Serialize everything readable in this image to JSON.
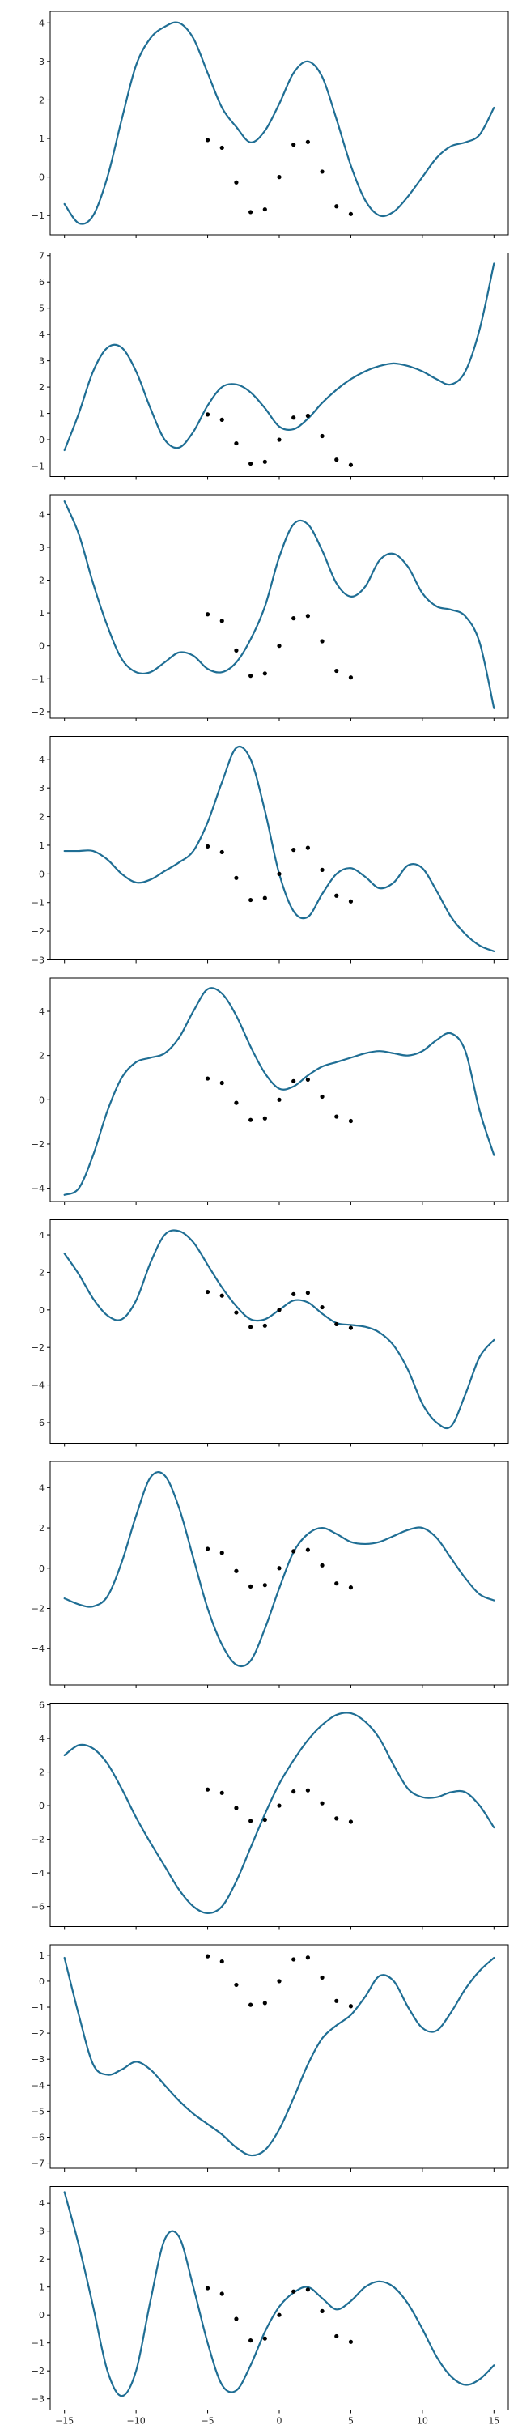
{
  "chart_data": [
    {
      "type": "line",
      "xlim": [
        -16,
        16
      ],
      "ylim": [
        -1.5,
        4.3
      ],
      "yticks": [
        -1,
        0,
        1,
        2,
        3,
        4
      ],
      "xticks": [
        -15,
        -10,
        -5,
        0,
        5,
        10,
        15
      ],
      "show_xtick_labels": false,
      "grid": false,
      "series_color": "#1f6e94",
      "curve": {
        "x": [
          -15,
          -14,
          -13,
          -12,
          -11,
          -10,
          -9,
          -8,
          -7,
          -6,
          -5,
          -4,
          -3,
          -2,
          -1,
          0,
          1,
          2,
          3,
          4,
          5,
          6,
          7,
          8,
          9,
          10,
          11,
          12,
          13,
          14,
          15
        ],
        "y": [
          -0.7,
          -1.2,
          -1.0,
          0.0,
          1.5,
          2.9,
          3.6,
          3.9,
          4.0,
          3.6,
          2.7,
          1.8,
          1.3,
          0.9,
          1.2,
          1.9,
          2.7,
          3.0,
          2.6,
          1.5,
          0.3,
          -0.6,
          -1.0,
          -0.9,
          -0.5,
          0.0,
          0.5,
          0.8,
          0.9,
          1.1,
          1.8
        ]
      },
      "points": {
        "x": [
          -5,
          -4,
          -3,
          -2,
          -1,
          0,
          1,
          2,
          3,
          4,
          5
        ],
        "y": [
          0.96,
          0.76,
          -0.14,
          -0.91,
          -0.84,
          0.0,
          0.84,
          0.91,
          0.14,
          -0.76,
          -0.96
        ]
      }
    },
    {
      "type": "line",
      "xlim": [
        -16,
        16
      ],
      "ylim": [
        -1.4,
        7.1
      ],
      "yticks": [
        -1,
        0,
        1,
        2,
        3,
        4,
        5,
        6,
        7
      ],
      "xticks": [
        -15,
        -10,
        -5,
        0,
        5,
        10,
        15
      ],
      "show_xtick_labels": false,
      "grid": false,
      "series_color": "#1f6e94",
      "curve": {
        "x": [
          -15,
          -14,
          -13,
          -12,
          -11,
          -10,
          -9,
          -8,
          -7,
          -6,
          -5,
          -4,
          -3,
          -2,
          -1,
          0,
          1,
          2,
          3,
          4,
          5,
          6,
          7,
          8,
          9,
          10,
          11,
          12,
          13,
          14,
          15
        ],
        "y": [
          -0.4,
          1.0,
          2.6,
          3.5,
          3.5,
          2.6,
          1.2,
          0.0,
          -0.3,
          0.3,
          1.3,
          2.0,
          2.1,
          1.8,
          1.2,
          0.5,
          0.4,
          0.8,
          1.4,
          1.9,
          2.3,
          2.6,
          2.8,
          2.9,
          2.8,
          2.6,
          2.3,
          2.1,
          2.6,
          4.2,
          6.7
        ]
      },
      "points": {
        "x": [
          -5,
          -4,
          -3,
          -2,
          -1,
          0,
          1,
          2,
          3,
          4,
          5
        ],
        "y": [
          0.96,
          0.76,
          -0.14,
          -0.91,
          -0.84,
          0.0,
          0.84,
          0.91,
          0.14,
          -0.76,
          -0.96
        ]
      }
    },
    {
      "type": "line",
      "xlim": [
        -16,
        16
      ],
      "ylim": [
        -2.2,
        4.6
      ],
      "yticks": [
        -2,
        -1,
        0,
        1,
        2,
        3,
        4
      ],
      "xticks": [
        -15,
        -10,
        -5,
        0,
        5,
        10,
        15
      ],
      "show_xtick_labels": false,
      "grid": false,
      "series_color": "#1f6e94",
      "curve": {
        "x": [
          -15,
          -14,
          -13,
          -12,
          -11,
          -10,
          -9,
          -8,
          -7,
          -6,
          -5,
          -4,
          -3,
          -2,
          -1,
          0,
          1,
          2,
          3,
          4,
          5,
          6,
          7,
          8,
          9,
          10,
          11,
          12,
          13,
          14,
          15
        ],
        "y": [
          4.4,
          3.4,
          1.9,
          0.6,
          -0.4,
          -0.8,
          -0.8,
          -0.5,
          -0.2,
          -0.3,
          -0.7,
          -0.8,
          -0.5,
          0.2,
          1.2,
          2.7,
          3.7,
          3.7,
          2.9,
          1.9,
          1.5,
          1.8,
          2.6,
          2.8,
          2.4,
          1.6,
          1.2,
          1.1,
          0.9,
          0.1,
          -1.9
        ]
      },
      "points": {
        "x": [
          -5,
          -4,
          -3,
          -2,
          -1,
          0,
          1,
          2,
          3,
          4,
          5
        ],
        "y": [
          0.96,
          0.76,
          -0.14,
          -0.91,
          -0.84,
          0.0,
          0.84,
          0.91,
          0.14,
          -0.76,
          -0.96
        ]
      }
    },
    {
      "type": "line",
      "xlim": [
        -16,
        16
      ],
      "ylim": [
        -3.0,
        4.8
      ],
      "yticks": [
        -3,
        -2,
        -1,
        0,
        1,
        2,
        3,
        4
      ],
      "xticks": [
        -15,
        -10,
        -5,
        0,
        5,
        10,
        15
      ],
      "show_xtick_labels": false,
      "grid": false,
      "series_color": "#1f6e94",
      "curve": {
        "x": [
          -15,
          -14,
          -13,
          -12,
          -11,
          -10,
          -9,
          -8,
          -7,
          -6,
          -5,
          -4,
          -3,
          -2,
          -1,
          0,
          1,
          2,
          3,
          4,
          5,
          6,
          7,
          8,
          9,
          10,
          11,
          12,
          13,
          14,
          15
        ],
        "y": [
          0.8,
          0.8,
          0.8,
          0.5,
          0.0,
          -0.3,
          -0.2,
          0.1,
          0.4,
          0.8,
          1.8,
          3.2,
          4.4,
          4.0,
          2.2,
          0.0,
          -1.3,
          -1.5,
          -0.7,
          0.0,
          0.2,
          -0.1,
          -0.5,
          -0.3,
          0.3,
          0.2,
          -0.6,
          -1.5,
          -2.1,
          -2.5,
          -2.7
        ]
      },
      "points": {
        "x": [
          -5,
          -4,
          -3,
          -2,
          -1,
          0,
          1,
          2,
          3,
          4,
          5
        ],
        "y": [
          0.96,
          0.76,
          -0.14,
          -0.91,
          -0.84,
          0.0,
          0.84,
          0.91,
          0.14,
          -0.76,
          -0.96
        ]
      }
    },
    {
      "type": "line",
      "xlim": [
        -16,
        16
      ],
      "ylim": [
        -4.6,
        5.5
      ],
      "yticks": [
        -4,
        -2,
        0,
        2,
        4
      ],
      "xticks": [
        -15,
        -10,
        -5,
        0,
        5,
        10,
        15
      ],
      "show_xtick_labels": false,
      "grid": false,
      "series_color": "#1f6e94",
      "curve": {
        "x": [
          -15,
          -14,
          -13,
          -12,
          -11,
          -10,
          -9,
          -8,
          -7,
          -6,
          -5,
          -4,
          -3,
          -2,
          -1,
          0,
          1,
          2,
          3,
          4,
          5,
          6,
          7,
          8,
          9,
          10,
          11,
          12,
          13,
          14,
          15
        ],
        "y": [
          -4.3,
          -4.0,
          -2.5,
          -0.5,
          1.0,
          1.7,
          1.9,
          2.1,
          2.8,
          4.0,
          5.0,
          4.8,
          3.8,
          2.4,
          1.2,
          0.5,
          0.6,
          1.1,
          1.5,
          1.7,
          1.9,
          2.1,
          2.2,
          2.1,
          2.0,
          2.2,
          2.7,
          3.0,
          2.2,
          -0.5,
          -2.5
        ]
      },
      "points": {
        "x": [
          -5,
          -4,
          -3,
          -2,
          -1,
          0,
          1,
          2,
          3,
          4,
          5
        ],
        "y": [
          0.96,
          0.76,
          -0.14,
          -0.91,
          -0.84,
          0.0,
          0.84,
          0.91,
          0.14,
          -0.76,
          -0.96
        ]
      }
    },
    {
      "type": "line",
      "xlim": [
        -16,
        16
      ],
      "ylim": [
        -7.1,
        4.8
      ],
      "yticks": [
        -6,
        -4,
        -2,
        0,
        2,
        4
      ],
      "xticks": [
        -15,
        -10,
        -5,
        0,
        5,
        10,
        15
      ],
      "show_xtick_labels": false,
      "grid": false,
      "series_color": "#1f6e94",
      "curve": {
        "x": [
          -15,
          -14,
          -13,
          -12,
          -11,
          -10,
          -9,
          -8,
          -7,
          -6,
          -5,
          -4,
          -3,
          -2,
          -1,
          0,
          1,
          2,
          3,
          4,
          5,
          6,
          7,
          8,
          9,
          10,
          11,
          12,
          13,
          14,
          15
        ],
        "y": [
          3.0,
          1.9,
          0.6,
          -0.3,
          -0.5,
          0.5,
          2.5,
          4.0,
          4.2,
          3.6,
          2.4,
          1.2,
          0.2,
          -0.5,
          -0.5,
          0.0,
          0.5,
          0.4,
          -0.2,
          -0.7,
          -0.8,
          -0.9,
          -1.2,
          -1.9,
          -3.2,
          -5.0,
          -6.0,
          -6.2,
          -4.5,
          -2.5,
          -1.6
        ]
      },
      "points": {
        "x": [
          -5,
          -4,
          -3,
          -2,
          -1,
          0,
          1,
          2,
          3,
          4,
          5
        ],
        "y": [
          0.96,
          0.76,
          -0.14,
          -0.91,
          -0.84,
          0.0,
          0.84,
          0.91,
          0.14,
          -0.76,
          -0.96
        ]
      }
    },
    {
      "type": "line",
      "xlim": [
        -16,
        16
      ],
      "ylim": [
        -5.8,
        5.3
      ],
      "yticks": [
        -4,
        -2,
        0,
        2,
        4
      ],
      "xticks": [
        -15,
        -10,
        -5,
        0,
        5,
        10,
        15
      ],
      "show_xtick_labels": false,
      "grid": false,
      "series_color": "#1f6e94",
      "curve": {
        "x": [
          -15,
          -14,
          -13,
          -12,
          -11,
          -10,
          -9,
          -8,
          -7,
          -6,
          -5,
          -4,
          -3,
          -2,
          -1,
          0,
          1,
          2,
          3,
          4,
          5,
          6,
          7,
          8,
          9,
          10,
          11,
          12,
          13,
          14,
          15
        ],
        "y": [
          -1.5,
          -1.8,
          -1.9,
          -1.4,
          0.3,
          2.6,
          4.5,
          4.6,
          3.0,
          0.5,
          -2.0,
          -3.8,
          -4.8,
          -4.6,
          -3.0,
          -1.0,
          0.8,
          1.7,
          2.0,
          1.7,
          1.3,
          1.2,
          1.3,
          1.6,
          1.9,
          2.0,
          1.5,
          0.5,
          -0.5,
          -1.3,
          -1.6
        ]
      },
      "points": {
        "x": [
          -5,
          -4,
          -3,
          -2,
          -1,
          0,
          1,
          2,
          3,
          4,
          5
        ],
        "y": [
          0.96,
          0.76,
          -0.14,
          -0.91,
          -0.84,
          0.0,
          0.84,
          0.91,
          0.14,
          -0.76,
          -0.96
        ]
      }
    },
    {
      "type": "line",
      "xlim": [
        -16,
        16
      ],
      "ylim": [
        -7.2,
        6.1
      ],
      "yticks": [
        -6,
        -4,
        -2,
        0,
        2,
        4,
        6
      ],
      "xticks": [
        -15,
        -10,
        -5,
        0,
        5,
        10,
        15
      ],
      "show_xtick_labels": false,
      "grid": false,
      "series_color": "#1f6e94",
      "curve": {
        "x": [
          -15,
          -14,
          -13,
          -12,
          -11,
          -10,
          -9,
          -8,
          -7,
          -6,
          -5,
          -4,
          -3,
          -2,
          -1,
          0,
          1,
          2,
          3,
          4,
          5,
          6,
          7,
          8,
          9,
          10,
          11,
          12,
          13,
          14,
          15
        ],
        "y": [
          3.0,
          3.6,
          3.4,
          2.5,
          1.0,
          -0.7,
          -2.2,
          -3.6,
          -5.0,
          -6.0,
          -6.4,
          -6.0,
          -4.5,
          -2.5,
          -0.5,
          1.3,
          2.7,
          3.9,
          4.8,
          5.4,
          5.5,
          5.0,
          4.0,
          2.4,
          1.0,
          0.5,
          0.5,
          0.8,
          0.8,
          0.0,
          -1.3
        ]
      },
      "points": {
        "x": [
          -5,
          -4,
          -3,
          -2,
          -1,
          0,
          1,
          2,
          3,
          4,
          5
        ],
        "y": [
          0.96,
          0.76,
          -0.14,
          -0.91,
          -0.84,
          0.0,
          0.84,
          0.91,
          0.14,
          -0.76,
          -0.96
        ]
      }
    },
    {
      "type": "line",
      "xlim": [
        -16,
        16
      ],
      "ylim": [
        -7.2,
        1.4
      ],
      "yticks": [
        -7,
        -6,
        -5,
        -4,
        -3,
        -2,
        -1,
        0,
        1
      ],
      "xticks": [
        -15,
        -10,
        -5,
        0,
        5,
        10,
        15
      ],
      "show_xtick_labels": false,
      "grid": false,
      "series_color": "#1f6e94",
      "curve": {
        "x": [
          -15,
          -14,
          -13,
          -12,
          -11,
          -10,
          -9,
          -8,
          -7,
          -6,
          -5,
          -4,
          -3,
          -2,
          -1,
          0,
          1,
          2,
          3,
          4,
          5,
          6,
          7,
          8,
          9,
          10,
          11,
          12,
          13,
          14,
          15
        ],
        "y": [
          0.9,
          -1.3,
          -3.2,
          -3.6,
          -3.4,
          -3.1,
          -3.4,
          -4.0,
          -4.6,
          -5.1,
          -5.5,
          -5.9,
          -6.4,
          -6.7,
          -6.5,
          -5.7,
          -4.5,
          -3.2,
          -2.2,
          -1.7,
          -1.3,
          -0.6,
          0.2,
          0.0,
          -1.0,
          -1.8,
          -1.9,
          -1.2,
          -0.3,
          0.4,
          0.9
        ]
      },
      "points": {
        "x": [
          -5,
          -4,
          -3,
          -2,
          -1,
          0,
          1,
          2,
          3,
          4,
          5
        ],
        "y": [
          0.96,
          0.76,
          -0.14,
          -0.91,
          -0.84,
          0.0,
          0.84,
          0.91,
          0.14,
          -0.76,
          -0.96
        ]
      }
    },
    {
      "type": "line",
      "xlim": [
        -16,
        16
      ],
      "ylim": [
        -3.4,
        4.6
      ],
      "yticks": [
        -3,
        -2,
        -1,
        0,
        1,
        2,
        3,
        4
      ],
      "xticks": [
        -15,
        -10,
        -5,
        0,
        5,
        10,
        15
      ],
      "xtick_labels": [
        "−15",
        "−10",
        "−5",
        "0",
        "5",
        "10",
        "15"
      ],
      "show_xtick_labels": true,
      "grid": false,
      "series_color": "#1f6e94",
      "curve": {
        "x": [
          -15,
          -14,
          -13,
          -12,
          -11,
          -10,
          -9,
          -8,
          -7,
          -6,
          -5,
          -4,
          -3,
          -2,
          -1,
          0,
          1,
          2,
          3,
          4,
          5,
          6,
          7,
          8,
          9,
          10,
          11,
          12,
          13,
          14,
          15
        ],
        "y": [
          4.4,
          2.5,
          0.3,
          -2.0,
          -2.9,
          -2.0,
          0.5,
          2.7,
          2.8,
          1.0,
          -1.0,
          -2.5,
          -2.7,
          -1.8,
          -0.6,
          0.3,
          0.8,
          1.0,
          0.6,
          0.2,
          0.5,
          1.0,
          1.2,
          1.0,
          0.4,
          -0.5,
          -1.5,
          -2.2,
          -2.5,
          -2.3,
          -1.8
        ]
      },
      "points": {
        "x": [
          -5,
          -4,
          -3,
          -2,
          -1,
          0,
          1,
          2,
          3,
          4,
          5
        ],
        "y": [
          0.96,
          0.76,
          -0.14,
          -0.91,
          -0.84,
          0.0,
          0.84,
          0.91,
          0.14,
          -0.76,
          -0.96
        ]
      }
    }
  ]
}
